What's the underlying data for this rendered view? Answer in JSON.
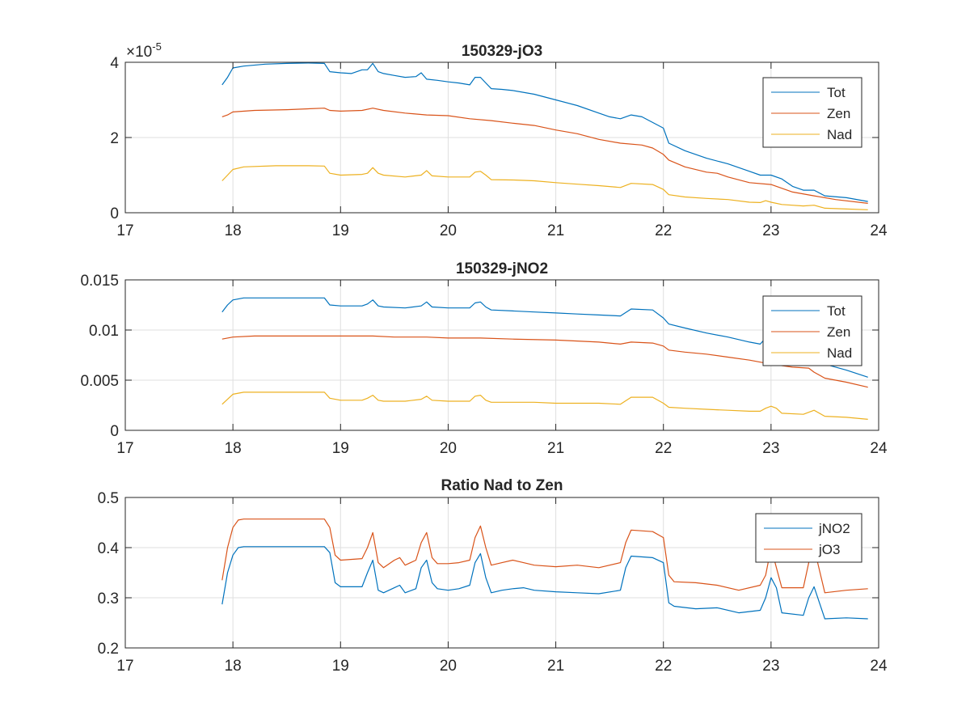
{
  "chart_data": [
    {
      "type": "line",
      "title": "150329-jO3",
      "xlabel": "",
      "ylabel": "",
      "xlim": [
        17,
        24
      ],
      "ylim": [
        0,
        4
      ],
      "xticks": [
        "17",
        "18",
        "19",
        "20",
        "21",
        "22",
        "23",
        "24"
      ],
      "yticks": [
        "0",
        "2",
        "4"
      ],
      "y_exponent_label": "×10",
      "y_exponent_power": "-5",
      "grid": true,
      "legend_position": "top-right",
      "series": [
        {
          "name": "Tot",
          "color": "#0072BD",
          "x": [
            17.9,
            17.95,
            18.0,
            18.1,
            18.3,
            18.5,
            18.7,
            18.85,
            18.9,
            19.0,
            19.1,
            19.2,
            19.25,
            19.3,
            19.35,
            19.4,
            19.5,
            19.6,
            19.7,
            19.75,
            19.8,
            19.9,
            20.0,
            20.1,
            20.2,
            20.25,
            20.3,
            20.35,
            20.4,
            20.5,
            20.6,
            20.8,
            21.0,
            21.2,
            21.4,
            21.5,
            21.6,
            21.7,
            21.8,
            21.9,
            22.0,
            22.05,
            22.2,
            22.4,
            22.6,
            22.8,
            22.9,
            23.0,
            23.1,
            23.2,
            23.3,
            23.4,
            23.5,
            23.7,
            23.9
          ],
          "y": [
            3.4,
            3.6,
            3.85,
            3.9,
            3.95,
            3.97,
            3.98,
            3.97,
            3.75,
            3.72,
            3.7,
            3.8,
            3.8,
            3.97,
            3.75,
            3.7,
            3.65,
            3.6,
            3.62,
            3.72,
            3.55,
            3.52,
            3.48,
            3.45,
            3.4,
            3.6,
            3.6,
            3.45,
            3.3,
            3.28,
            3.25,
            3.15,
            3.0,
            2.85,
            2.65,
            2.55,
            2.5,
            2.6,
            2.55,
            2.4,
            2.25,
            1.85,
            1.65,
            1.45,
            1.3,
            1.1,
            1.0,
            1.0,
            0.9,
            0.7,
            0.6,
            0.6,
            0.45,
            0.4,
            0.3
          ]
        },
        {
          "name": "Zen",
          "color": "#D95319",
          "x": [
            17.9,
            17.95,
            18.0,
            18.2,
            18.5,
            18.85,
            18.9,
            19.0,
            19.2,
            19.3,
            19.4,
            19.6,
            19.8,
            20.0,
            20.2,
            20.4,
            20.6,
            20.8,
            21.0,
            21.2,
            21.4,
            21.6,
            21.8,
            21.9,
            22.0,
            22.05,
            22.2,
            22.4,
            22.5,
            22.6,
            22.8,
            23.0,
            23.2,
            23.4,
            23.6,
            23.9
          ],
          "y": [
            2.55,
            2.6,
            2.68,
            2.72,
            2.74,
            2.78,
            2.72,
            2.7,
            2.72,
            2.78,
            2.72,
            2.65,
            2.6,
            2.58,
            2.5,
            2.45,
            2.38,
            2.32,
            2.2,
            2.1,
            1.95,
            1.85,
            1.8,
            1.72,
            1.55,
            1.4,
            1.22,
            1.08,
            1.05,
            0.95,
            0.8,
            0.75,
            0.55,
            0.45,
            0.35,
            0.25
          ]
        },
        {
          "name": "Nad",
          "color": "#EDB120",
          "x": [
            17.9,
            17.95,
            18.0,
            18.1,
            18.4,
            18.7,
            18.85,
            18.9,
            19.0,
            19.2,
            19.25,
            19.3,
            19.35,
            19.4,
            19.6,
            19.75,
            19.8,
            19.85,
            20.0,
            20.2,
            20.25,
            20.3,
            20.35,
            20.4,
            20.6,
            20.8,
            21.0,
            21.2,
            21.4,
            21.6,
            21.7,
            21.9,
            22.0,
            22.05,
            22.2,
            22.4,
            22.6,
            22.8,
            22.9,
            22.95,
            23.0,
            23.1,
            23.3,
            23.4,
            23.5,
            23.7,
            23.9
          ],
          "y": [
            0.85,
            1.0,
            1.15,
            1.22,
            1.25,
            1.25,
            1.24,
            1.05,
            1.0,
            1.02,
            1.05,
            1.2,
            1.05,
            1.0,
            0.95,
            1.0,
            1.12,
            0.98,
            0.95,
            0.95,
            1.08,
            1.1,
            1.0,
            0.88,
            0.87,
            0.85,
            0.8,
            0.76,
            0.72,
            0.67,
            0.78,
            0.75,
            0.62,
            0.48,
            0.42,
            0.38,
            0.35,
            0.28,
            0.27,
            0.32,
            0.28,
            0.22,
            0.18,
            0.2,
            0.12,
            0.1,
            0.08
          ]
        }
      ]
    },
    {
      "type": "line",
      "title": "150329-jNO2",
      "xlabel": "",
      "ylabel": "",
      "xlim": [
        17,
        24
      ],
      "ylim": [
        0,
        0.015
      ],
      "xticks": [
        "17",
        "18",
        "19",
        "20",
        "21",
        "22",
        "23",
        "24"
      ],
      "yticks": [
        "0",
        "0.005",
        "0.01",
        "0.015"
      ],
      "grid": true,
      "legend_position": "top-right",
      "series": [
        {
          "name": "Tot",
          "color": "#0072BD",
          "x": [
            17.9,
            17.95,
            18.0,
            18.1,
            18.4,
            18.7,
            18.85,
            18.9,
            19.0,
            19.2,
            19.25,
            19.3,
            19.35,
            19.4,
            19.6,
            19.75,
            19.8,
            19.85,
            20.0,
            20.2,
            20.25,
            20.3,
            20.35,
            20.4,
            20.6,
            20.8,
            21.0,
            21.2,
            21.4,
            21.6,
            21.7,
            21.9,
            22.0,
            22.05,
            22.2,
            22.4,
            22.6,
            22.8,
            22.9,
            22.95,
            23.0,
            23.1,
            23.3,
            23.4,
            23.5,
            23.7,
            23.9
          ],
          "y": [
            0.0118,
            0.0125,
            0.013,
            0.0132,
            0.0132,
            0.0132,
            0.0132,
            0.0125,
            0.0124,
            0.0124,
            0.0126,
            0.013,
            0.0124,
            0.0123,
            0.0122,
            0.0124,
            0.0128,
            0.0123,
            0.0122,
            0.0122,
            0.0127,
            0.0128,
            0.0123,
            0.012,
            0.0119,
            0.0118,
            0.0117,
            0.0116,
            0.0115,
            0.0114,
            0.0121,
            0.012,
            0.0112,
            0.0106,
            0.0102,
            0.0097,
            0.0093,
            0.0088,
            0.0086,
            0.0092,
            0.0088,
            0.008,
            0.0074,
            0.0076,
            0.0066,
            0.006,
            0.0053
          ]
        },
        {
          "name": "Zen",
          "color": "#D95319",
          "x": [
            17.9,
            18.0,
            18.2,
            18.5,
            18.85,
            19.0,
            19.3,
            19.5,
            19.8,
            20.0,
            20.3,
            20.6,
            21.0,
            21.4,
            21.6,
            21.7,
            21.9,
            22.0,
            22.05,
            22.2,
            22.4,
            22.6,
            22.8,
            23.0,
            23.2,
            23.35,
            23.4,
            23.5,
            23.7,
            23.9
          ],
          "y": [
            0.0091,
            0.0093,
            0.0094,
            0.0094,
            0.0094,
            0.0094,
            0.0094,
            0.0093,
            0.0093,
            0.0092,
            0.0092,
            0.0091,
            0.009,
            0.0088,
            0.0086,
            0.0088,
            0.0087,
            0.0084,
            0.008,
            0.0078,
            0.0076,
            0.0073,
            0.007,
            0.0066,
            0.0063,
            0.0062,
            0.0058,
            0.0052,
            0.0048,
            0.0043
          ]
        },
        {
          "name": "Nad",
          "color": "#EDB120",
          "x": [
            17.9,
            17.95,
            18.0,
            18.1,
            18.4,
            18.7,
            18.85,
            18.9,
            19.0,
            19.2,
            19.25,
            19.3,
            19.35,
            19.4,
            19.6,
            19.75,
            19.8,
            19.85,
            20.0,
            20.2,
            20.25,
            20.3,
            20.35,
            20.4,
            20.6,
            20.8,
            21.0,
            21.2,
            21.4,
            21.6,
            21.7,
            21.9,
            22.0,
            22.05,
            22.2,
            22.4,
            22.6,
            22.8,
            22.9,
            22.95,
            23.0,
            23.05,
            23.1,
            23.3,
            23.4,
            23.5,
            23.7,
            23.9
          ],
          "y": [
            0.0026,
            0.0031,
            0.0036,
            0.0038,
            0.0038,
            0.0038,
            0.0038,
            0.0032,
            0.003,
            0.003,
            0.0032,
            0.0035,
            0.003,
            0.0029,
            0.0029,
            0.0031,
            0.0034,
            0.003,
            0.0029,
            0.0029,
            0.0034,
            0.0035,
            0.003,
            0.0028,
            0.0028,
            0.0028,
            0.0027,
            0.0027,
            0.0027,
            0.0026,
            0.0033,
            0.0033,
            0.0027,
            0.0023,
            0.0022,
            0.0021,
            0.002,
            0.0019,
            0.0019,
            0.0022,
            0.0024,
            0.0022,
            0.0017,
            0.0016,
            0.002,
            0.0014,
            0.0013,
            0.0011
          ]
        }
      ]
    },
    {
      "type": "line",
      "title": "Ratio Nad to Zen",
      "xlabel": "",
      "ylabel": "",
      "xlim": [
        17,
        24
      ],
      "ylim": [
        0.2,
        0.5
      ],
      "xticks": [
        "17",
        "18",
        "19",
        "20",
        "21",
        "22",
        "23",
        "24"
      ],
      "yticks": [
        "0.2",
        "0.3",
        "0.4",
        "0.5"
      ],
      "grid": true,
      "legend_position": "top-right",
      "series": [
        {
          "name": "jNO2",
          "color": "#0072BD",
          "x": [
            17.9,
            17.95,
            18.0,
            18.05,
            18.1,
            18.3,
            18.6,
            18.85,
            18.9,
            18.95,
            19.0,
            19.2,
            19.25,
            19.3,
            19.35,
            19.4,
            19.5,
            19.55,
            19.6,
            19.7,
            19.75,
            19.8,
            19.85,
            19.9,
            20.0,
            20.1,
            20.2,
            20.25,
            20.3,
            20.35,
            20.4,
            20.5,
            20.6,
            20.7,
            20.8,
            21.0,
            21.2,
            21.4,
            21.6,
            21.65,
            21.7,
            21.9,
            22.0,
            22.05,
            22.1,
            22.3,
            22.5,
            22.7,
            22.9,
            22.95,
            23.0,
            23.05,
            23.1,
            23.3,
            23.35,
            23.4,
            23.5,
            23.7,
            23.9
          ],
          "y": [
            0.287,
            0.35,
            0.385,
            0.4,
            0.402,
            0.402,
            0.402,
            0.402,
            0.39,
            0.33,
            0.322,
            0.322,
            0.35,
            0.375,
            0.315,
            0.31,
            0.32,
            0.325,
            0.31,
            0.318,
            0.36,
            0.375,
            0.33,
            0.318,
            0.315,
            0.318,
            0.325,
            0.37,
            0.388,
            0.34,
            0.31,
            0.315,
            0.318,
            0.32,
            0.315,
            0.312,
            0.31,
            0.308,
            0.315,
            0.36,
            0.383,
            0.38,
            0.37,
            0.29,
            0.283,
            0.278,
            0.28,
            0.27,
            0.275,
            0.3,
            0.34,
            0.32,
            0.27,
            0.265,
            0.3,
            0.322,
            0.258,
            0.26,
            0.258
          ]
        },
        {
          "name": "jO3",
          "color": "#D95319",
          "x": [
            17.9,
            17.95,
            18.0,
            18.05,
            18.1,
            18.3,
            18.6,
            18.85,
            18.9,
            18.95,
            19.0,
            19.2,
            19.25,
            19.3,
            19.35,
            19.4,
            19.5,
            19.55,
            19.6,
            19.7,
            19.75,
            19.8,
            19.85,
            19.9,
            20.0,
            20.1,
            20.2,
            20.25,
            20.3,
            20.35,
            20.4,
            20.5,
            20.6,
            20.7,
            20.8,
            21.0,
            21.2,
            21.4,
            21.6,
            21.65,
            21.7,
            21.9,
            22.0,
            22.05,
            22.1,
            22.3,
            22.5,
            22.7,
            22.9,
            22.95,
            23.0,
            23.05,
            23.1,
            23.3,
            23.35,
            23.4,
            23.5,
            23.7,
            23.9
          ],
          "y": [
            0.335,
            0.4,
            0.44,
            0.455,
            0.457,
            0.457,
            0.457,
            0.457,
            0.44,
            0.385,
            0.375,
            0.378,
            0.4,
            0.43,
            0.37,
            0.36,
            0.375,
            0.38,
            0.365,
            0.375,
            0.41,
            0.43,
            0.38,
            0.368,
            0.368,
            0.37,
            0.375,
            0.42,
            0.443,
            0.4,
            0.365,
            0.37,
            0.375,
            0.37,
            0.365,
            0.362,
            0.365,
            0.36,
            0.37,
            0.41,
            0.435,
            0.432,
            0.42,
            0.345,
            0.332,
            0.33,
            0.325,
            0.315,
            0.325,
            0.345,
            0.4,
            0.36,
            0.32,
            0.32,
            0.37,
            0.4,
            0.31,
            0.315,
            0.318
          ]
        }
      ]
    }
  ]
}
